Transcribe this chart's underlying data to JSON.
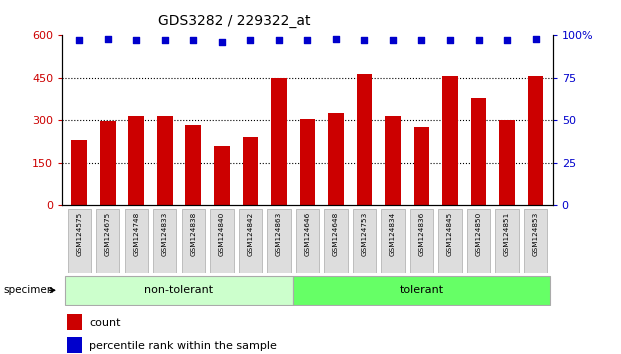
{
  "title": "GDS3282 / 229322_at",
  "categories": [
    "GSM124575",
    "GSM124675",
    "GSM124748",
    "GSM124833",
    "GSM124838",
    "GSM124840",
    "GSM124842",
    "GSM124863",
    "GSM124646",
    "GSM124648",
    "GSM124753",
    "GSM124834",
    "GSM124836",
    "GSM124845",
    "GSM124850",
    "GSM124851",
    "GSM124853"
  ],
  "bar_values": [
    230,
    298,
    315,
    315,
    285,
    210,
    240,
    450,
    305,
    325,
    465,
    315,
    275,
    455,
    380,
    300,
    455
  ],
  "percentile_values": [
    97,
    98,
    97,
    97,
    97,
    96,
    97,
    97,
    97,
    98,
    97,
    97,
    97,
    97,
    97,
    97,
    98
  ],
  "bar_color": "#cc0000",
  "dot_color": "#0000cc",
  "left_yticks": [
    0,
    150,
    300,
    450,
    600
  ],
  "right_yticks": [
    0,
    25,
    50,
    75,
    100
  ],
  "ylim_left": [
    0,
    600
  ],
  "ylim_right": [
    0,
    100
  ],
  "non_tolerant_count": 8,
  "tolerant_count": 9,
  "non_tolerant_color": "#ccffcc",
  "tolerant_color": "#66ff66",
  "specimen_label": "specimen",
  "legend_count_label": "count",
  "legend_percentile_label": "percentile rank within the sample",
  "bg_color": "#ffffff",
  "tick_label_bg": "#dddddd",
  "grid_color": "#000000"
}
